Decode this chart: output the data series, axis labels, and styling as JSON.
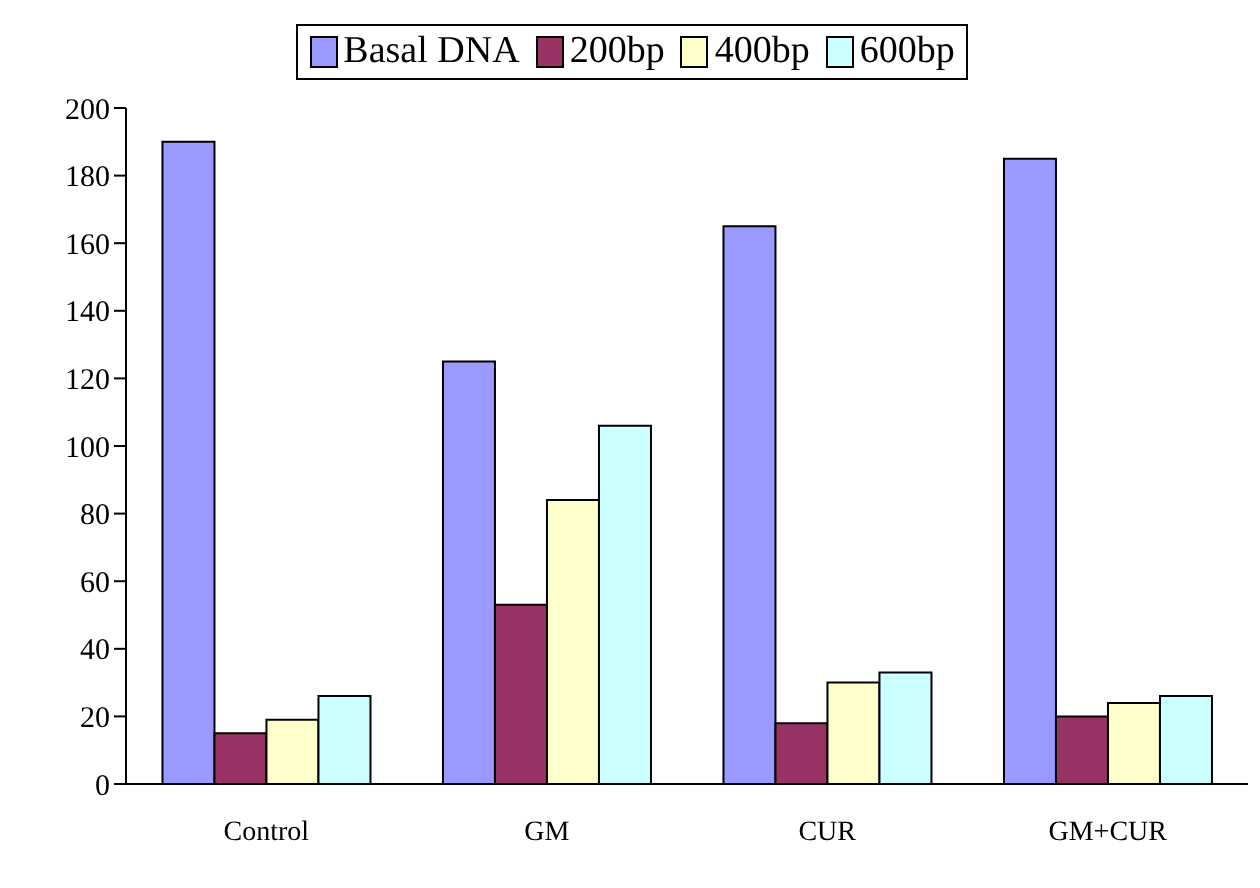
{
  "chart_data": {
    "type": "bar",
    "categories": [
      "Control",
      "GM",
      "CUR",
      "GM+CUR"
    ],
    "series": [
      {
        "name": "Basal DNA",
        "color": "#9999ff",
        "values": [
          190,
          125,
          165,
          185
        ]
      },
      {
        "name": "200bp",
        "color": "#993366",
        "values": [
          15,
          53,
          18,
          20
        ]
      },
      {
        "name": "400bp",
        "color": "#ffffcc",
        "values": [
          19,
          84,
          30,
          24
        ]
      },
      {
        "name": "600bp",
        "color": "#ccffff",
        "values": [
          26,
          106,
          33,
          26
        ]
      }
    ],
    "ylim": [
      0,
      200
    ],
    "yticks": [
      0,
      20,
      40,
      60,
      80,
      100,
      120,
      140,
      160,
      180,
      200
    ],
    "grid": false,
    "legend": "top"
  }
}
